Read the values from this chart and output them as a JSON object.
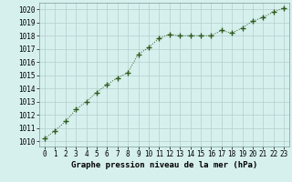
{
  "x": [
    0,
    1,
    2,
    3,
    4,
    5,
    6,
    7,
    8,
    9,
    10,
    11,
    12,
    13,
    14,
    15,
    16,
    17,
    18,
    19,
    20,
    21,
    22,
    23
  ],
  "y": [
    1010.2,
    1010.8,
    1011.5,
    1012.4,
    1013.0,
    1013.7,
    1014.3,
    1014.8,
    1015.2,
    1016.6,
    1017.1,
    1017.8,
    1018.1,
    1018.0,
    1018.0,
    1018.0,
    1018.0,
    1018.4,
    1018.2,
    1018.6,
    1019.1,
    1019.4,
    1019.8,
    1020.1
  ],
  "line_color": "#2d5a1b",
  "marker": "+",
  "marker_size": 4,
  "bg_color": "#d6f0ee",
  "grid_color": "#b4cece",
  "title": "Graphe pression niveau de la mer (hPa)",
  "ylabel_vals": [
    1010,
    1011,
    1012,
    1013,
    1014,
    1015,
    1016,
    1017,
    1018,
    1019,
    1020
  ],
  "ylim": [
    1009.6,
    1020.5
  ],
  "xlim": [
    -0.5,
    23.5
  ],
  "tick_fontsize": 5.5,
  "title_fontsize": 6.5
}
